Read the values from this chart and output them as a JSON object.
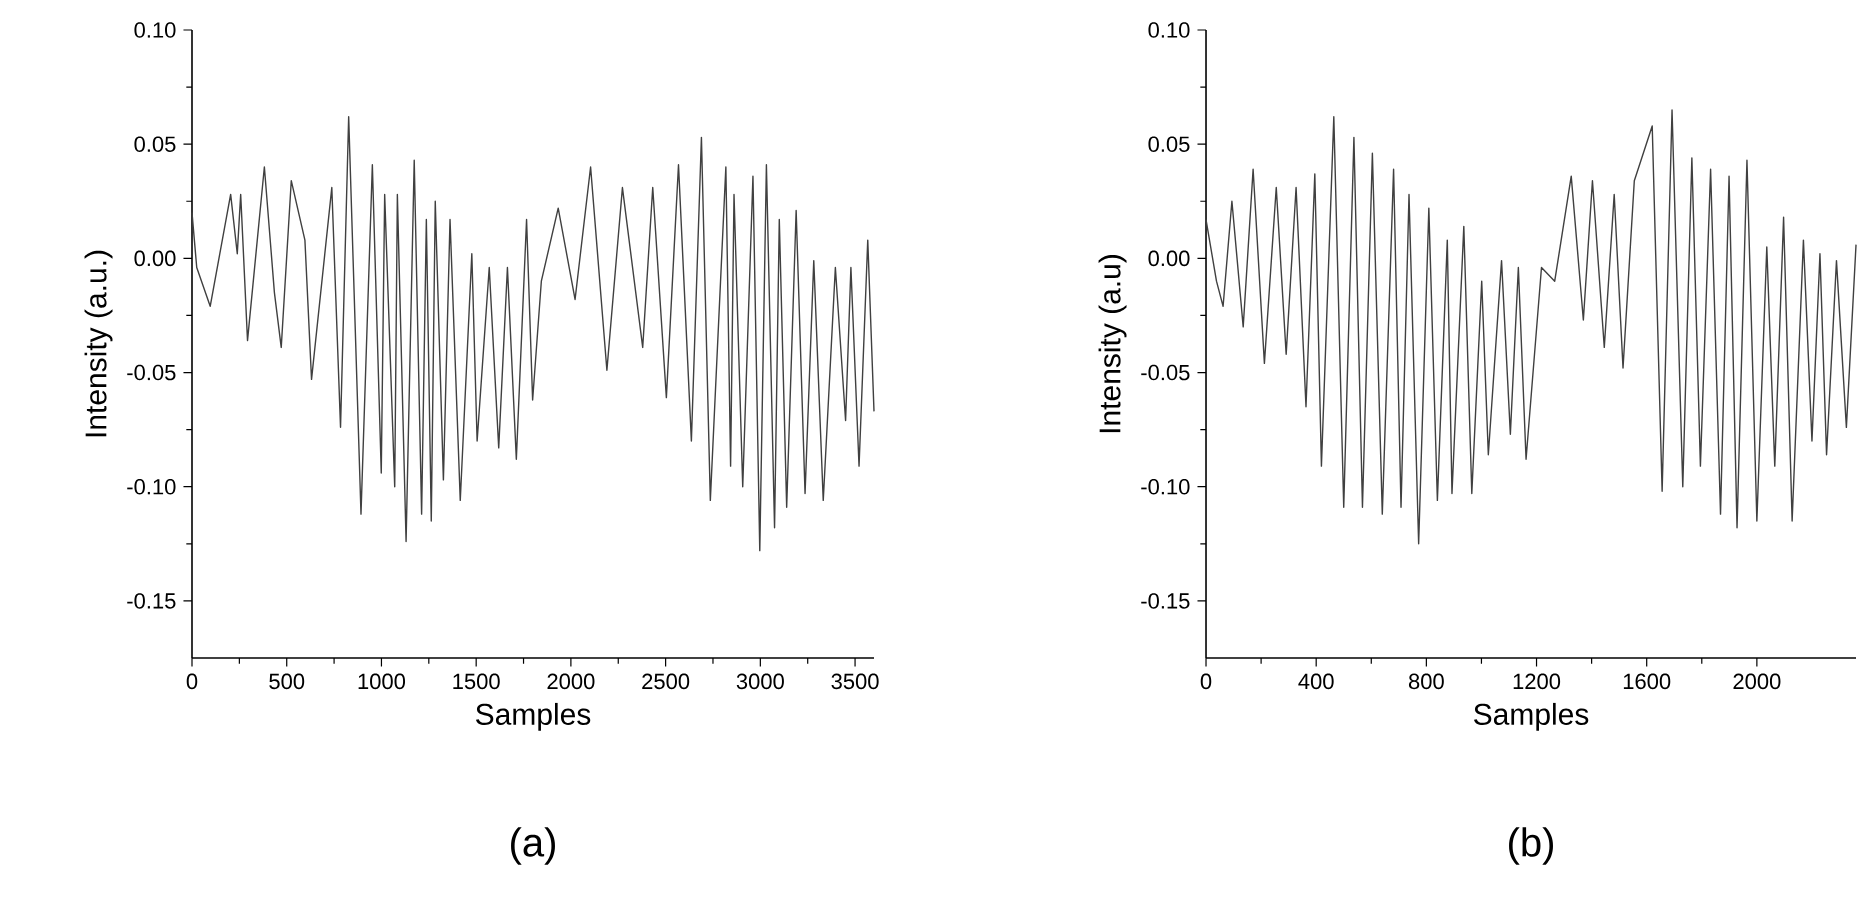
{
  "chart_data": [
    {
      "type": "line",
      "xlabel": "Samples",
      "ylabel": "Intensity (a.u.)",
      "annotations": [
        "(a)"
      ],
      "xlim": [
        0,
        3600
      ],
      "ylim": [
        -0.175,
        0.1
      ],
      "xticks": [
        0,
        500,
        1000,
        1500,
        2000,
        2500,
        3000,
        3500
      ],
      "yticks": [
        {
          "value": -0.15,
          "label": "-0.15"
        },
        {
          "value": -0.1,
          "label": "-0.10"
        },
        {
          "value": -0.05,
          "label": "-0.05"
        },
        {
          "value": 0,
          "label": "0.00"
        },
        {
          "value": 0.05,
          "label": "0.05"
        },
        {
          "value": 0.1,
          "label": "0.10"
        }
      ],
      "series": [
        {
          "color": "#404040",
          "x": [
            0,
            25,
            96,
            204,
            239,
            257,
            293,
            382,
            435,
            471,
            524,
            596,
            631,
            738,
            784,
            827,
            892,
            952,
            999,
            1017,
            1070,
            1084,
            1130,
            1173,
            1212,
            1237,
            1263,
            1284,
            1327,
            1362,
            1416,
            1477,
            1505,
            1569,
            1619,
            1665,
            1712,
            1766,
            1798,
            1844,
            1933,
            2022,
            2104,
            2190,
            2272,
            2379,
            2432,
            2504,
            2568,
            2636,
            2689,
            2736,
            2818,
            2843,
            2861,
            2907,
            2961,
            2997,
            3032,
            3075,
            3100,
            3139,
            3189,
            3236,
            3282,
            3332,
            3396,
            3450,
            3478,
            3521,
            3567,
            3600
          ],
          "values": [
            0.02,
            -0.004,
            -0.021,
            0.028,
            0.002,
            0.028,
            -0.036,
            0.04,
            -0.015,
            -0.039,
            0.034,
            0.008,
            -0.053,
            0.031,
            -0.074,
            0.062,
            -0.112,
            0.041,
            -0.094,
            0.028,
            -0.1,
            0.028,
            -0.124,
            0.043,
            -0.112,
            0.017,
            -0.115,
            0.025,
            -0.097,
            0.017,
            -0.106,
            0.002,
            -0.08,
            -0.004,
            -0.083,
            -0.004,
            -0.088,
            0.017,
            -0.062,
            -0.01,
            0.022,
            -0.018,
            0.04,
            -0.049,
            0.031,
            -0.039,
            0.031,
            -0.061,
            0.041,
            -0.08,
            0.053,
            -0.106,
            0.04,
            -0.091,
            0.028,
            -0.1,
            0.036,
            -0.128,
            0.041,
            -0.118,
            0.017,
            -0.109,
            0.021,
            -0.103,
            -0.001,
            -0.106,
            -0.004,
            -0.071,
            -0.004,
            -0.091,
            0.008,
            -0.067
          ]
        }
      ]
    },
    {
      "type": "line",
      "xlabel": "Samples",
      "ylabel": "Intensity (a.u)",
      "annotations": [
        "(b)"
      ],
      "xlim": [
        0,
        2360
      ],
      "ylim": [
        -0.175,
        0.1
      ],
      "xticks": [
        0,
        400,
        800,
        1200,
        1600,
        2000
      ],
      "yticks": [
        {
          "value": -0.15,
          "label": "-0.15"
        },
        {
          "value": -0.1,
          "label": "-0.10"
        },
        {
          "value": -0.05,
          "label": "-0.05"
        },
        {
          "value": 0,
          "label": "0.00"
        },
        {
          "value": 0.05,
          "label": "0.05"
        },
        {
          "value": 0.1,
          "label": "0.10"
        }
      ],
      "series": [
        {
          "color": "#404040",
          "x": [
            0,
            38,
            62,
            94,
            135,
            171,
            212,
            255,
            291,
            327,
            363,
            395,
            419,
            464,
            500,
            537,
            568,
            604,
            640,
            681,
            708,
            737,
            772,
            809,
            840,
            876,
            893,
            936,
            965,
            1001,
            1025,
            1073,
            1105,
            1134,
            1162,
            1218,
            1266,
            1326,
            1370,
            1403,
            1446,
            1482,
            1514,
            1555,
            1620,
            1656,
            1692,
            1731,
            1764,
            1795,
            1832,
            1868,
            1899,
            1928,
            1964,
            2000,
            2036,
            2065,
            2097,
            2128,
            2169,
            2200,
            2229,
            2253,
            2289,
            2325,
            2360
          ],
          "values": [
            0.017,
            -0.01,
            -0.021,
            0.025,
            -0.03,
            0.039,
            -0.046,
            0.031,
            -0.042,
            0.031,
            -0.065,
            0.037,
            -0.091,
            0.062,
            -0.109,
            0.053,
            -0.109,
            0.046,
            -0.112,
            0.039,
            -0.109,
            0.028,
            -0.125,
            0.022,
            -0.106,
            0.008,
            -0.103,
            0.014,
            -0.103,
            -0.01,
            -0.086,
            -0.001,
            -0.077,
            -0.004,
            -0.088,
            -0.004,
            -0.01,
            0.036,
            -0.027,
            0.034,
            -0.039,
            0.028,
            -0.048,
            0.034,
            0.058,
            -0.102,
            0.065,
            -0.1,
            0.044,
            -0.091,
            0.039,
            -0.112,
            0.036,
            -0.118,
            0.043,
            -0.115,
            0.005,
            -0.091,
            0.018,
            -0.115,
            0.008,
            -0.08,
            0.002,
            -0.086,
            -0.001,
            -0.074,
            0.006
          ]
        }
      ]
    }
  ]
}
